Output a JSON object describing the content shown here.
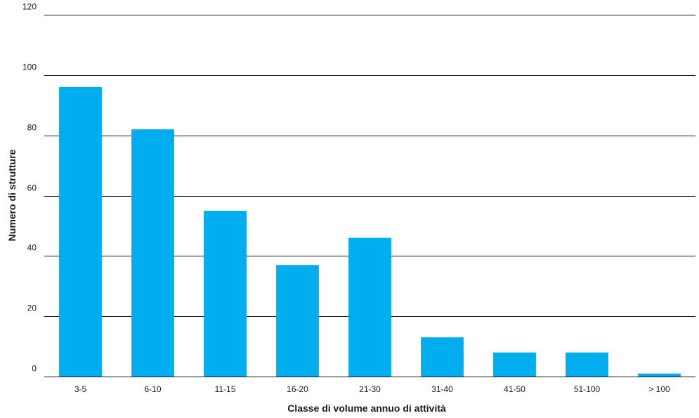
{
  "chart_data": {
    "type": "bar",
    "categories": [
      "3-5",
      "6-10",
      "11-15",
      "16-20",
      "21-30",
      "31-40",
      "41-50",
      "51-100",
      "> 100"
    ],
    "values": [
      96,
      82,
      55,
      37,
      46,
      13,
      8,
      8,
      1
    ],
    "title": "",
    "xlabel": "Classe di volume annuo di attività",
    "ylabel": "Numero di strutture",
    "ylim": [
      0,
      120
    ],
    "yticks": [
      0,
      20,
      40,
      60,
      80,
      100,
      120
    ],
    "grid": true,
    "bar_color": "#00ADEF",
    "grid_color": "#1a1a1a"
  }
}
